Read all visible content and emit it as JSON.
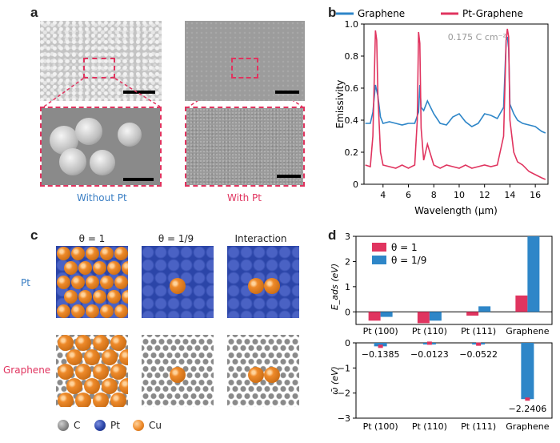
{
  "panels": {
    "a": "a",
    "b": "b",
    "c": "c",
    "d": "d"
  },
  "panel_a": {
    "caption_left": "Without Pt",
    "caption_right": "With Pt",
    "caption_left_color": "#3b7fc4",
    "caption_right_color": "#e0345f"
  },
  "panel_c": {
    "col1": "θ = 1",
    "col2": "θ = 1/9",
    "col3": "Interaction",
    "row1": "Pt",
    "row2": "Graphene",
    "row1_color": "#3b7fc4",
    "row2_color": "#e0345f",
    "legend": [
      {
        "label": "C",
        "color": "#8a8a8a"
      },
      {
        "label": "Pt",
        "color": "#2b45a8"
      },
      {
        "label": "Cu",
        "color": "#ee8a2a"
      }
    ]
  },
  "chart_data": [
    {
      "type": "line",
      "xlabel": "Wavelength (μm)",
      "ylabel": "Emissivity",
      "xlim": [
        2.5,
        17
      ],
      "ylim": [
        0,
        1.0
      ],
      "xticks": [
        2,
        4,
        6,
        8,
        10,
        12,
        14,
        16
      ],
      "yticks": [
        0,
        0.2,
        0.4,
        0.6,
        0.8,
        1.0
      ],
      "annotation": "0.175 C cm⁻²",
      "legend_position": "top",
      "series": [
        {
          "name": "Graphene",
          "color": "#2e86c8",
          "x": [
            2.6,
            3.0,
            3.2,
            3.4,
            3.6,
            3.8,
            4.0,
            4.5,
            5.0,
            5.5,
            6.0,
            6.5,
            6.8,
            6.9,
            7.0,
            7.2,
            7.5,
            8.0,
            8.5,
            9.0,
            9.5,
            10.0,
            10.5,
            11.0,
            11.5,
            12.0,
            12.5,
            13.0,
            13.5,
            13.7,
            13.8,
            13.9,
            14.0,
            14.3,
            14.6,
            15.0,
            15.5,
            16.0,
            16.5,
            16.8
          ],
          "y": [
            0.38,
            0.38,
            0.45,
            0.62,
            0.55,
            0.42,
            0.38,
            0.39,
            0.38,
            0.37,
            0.38,
            0.38,
            0.45,
            0.62,
            0.48,
            0.46,
            0.52,
            0.44,
            0.38,
            0.37,
            0.42,
            0.44,
            0.39,
            0.36,
            0.38,
            0.44,
            0.43,
            0.41,
            0.48,
            0.9,
            0.92,
            0.85,
            0.5,
            0.44,
            0.4,
            0.38,
            0.37,
            0.36,
            0.33,
            0.32
          ]
        },
        {
          "name": "Pt-Graphene",
          "color": "#e0345f",
          "x": [
            2.6,
            3.0,
            3.2,
            3.4,
            3.5,
            3.6,
            3.8,
            4.0,
            4.5,
            5.0,
            5.5,
            6.0,
            6.5,
            6.7,
            6.8,
            6.9,
            7.0,
            7.2,
            7.5,
            8.0,
            8.5,
            9.0,
            9.5,
            10.0,
            10.5,
            11.0,
            11.5,
            12.0,
            12.5,
            13.0,
            13.5,
            13.7,
            13.8,
            13.9,
            14.0,
            14.3,
            14.6,
            15.0,
            15.5,
            16.0,
            16.5,
            16.8
          ],
          "y": [
            0.12,
            0.11,
            0.3,
            0.96,
            0.9,
            0.55,
            0.2,
            0.12,
            0.11,
            0.1,
            0.12,
            0.1,
            0.12,
            0.4,
            0.95,
            0.88,
            0.35,
            0.15,
            0.25,
            0.12,
            0.1,
            0.12,
            0.11,
            0.1,
            0.12,
            0.1,
            0.11,
            0.12,
            0.11,
            0.12,
            0.3,
            0.9,
            0.97,
            0.92,
            0.4,
            0.2,
            0.14,
            0.12,
            0.08,
            0.06,
            0.04,
            0.03
          ]
        }
      ]
    },
    {
      "type": "bar",
      "categories": [
        "Pt (100)",
        "Pt (110)",
        "Pt (111)",
        "Graphene"
      ],
      "ylabel": "E_ads (eV)",
      "ylim": [
        -0.5,
        3
      ],
      "yticks": [
        0,
        1,
        2,
        3
      ],
      "legend_position": "top-left",
      "series": [
        {
          "name": "θ = 1",
          "color": "#e0345f",
          "values": [
            -0.35,
            -0.45,
            -0.15,
            0.65
          ]
        },
        {
          "name": "θ = 1/9",
          "color": "#2e86c8",
          "values": [
            -0.2,
            -0.35,
            0.22,
            3.0
          ]
        }
      ]
    },
    {
      "type": "bar",
      "categories": [
        "Pt (100)",
        "Pt (110)",
        "Pt (111)",
        "Graphene"
      ],
      "ylabel": "ω̄ (eV)",
      "ylim": [
        -3,
        0
      ],
      "yticks": [
        0,
        -1,
        -2,
        -3
      ],
      "series": [
        {
          "name": "",
          "color": "#2e86c8",
          "values": [
            -0.1385,
            -0.0123,
            -0.0522,
            -2.2406
          ]
        }
      ],
      "labels": [
        "−0.1385",
        "−0.0123",
        "−0.0522",
        "−2.2406"
      ]
    }
  ]
}
